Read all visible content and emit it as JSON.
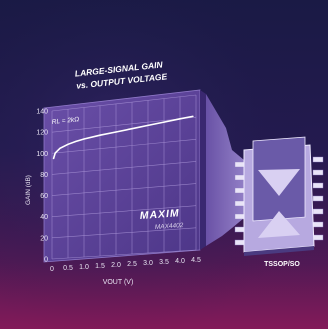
{
  "chart_data": {
    "type": "line",
    "title": [
      "LARGE-SIGNAL GAIN",
      "vs. OUTPUT VOLTAGE"
    ],
    "xlabel": "VOUT (V)",
    "ylabel": "GAIN (dB)",
    "xlim": [
      0,
      4.5
    ],
    "ylim": [
      0,
      140
    ],
    "x_ticks": [
      "0",
      "0.5",
      "1.0",
      "1.5",
      "2.0",
      "2.5",
      "3.0",
      "3.5",
      "4.0",
      "4.5"
    ],
    "y_ticks": [
      "0",
      "20",
      "40",
      "60",
      "80",
      "100",
      "120",
      "140"
    ],
    "grid": true,
    "annotation": "RL = 2kΩ",
    "series": [
      {
        "x": [
          0.05,
          0.1,
          0.25,
          0.5,
          0.75,
          1.0,
          1.5,
          2.0,
          2.5,
          3.0,
          3.5,
          4.0,
          4.4
        ],
        "values": [
          95,
          100,
          104,
          107,
          109,
          110.5,
          112.5,
          114,
          115.5,
          117,
          118.5,
          120,
          121
        ]
      }
    ]
  },
  "branding": {
    "logo": "MAXIM",
    "part_number": "MAX4402"
  },
  "package_label": "TSSOP/SO",
  "colors": {
    "background_top": "#17163f",
    "background_bottom": "#6c1552",
    "panel_purple": "#5b3f98",
    "grid": "#9d87c9",
    "curve": "#ffffff",
    "chip_top": "#b7a9e0",
    "chip_side": "#4a3a80"
  }
}
